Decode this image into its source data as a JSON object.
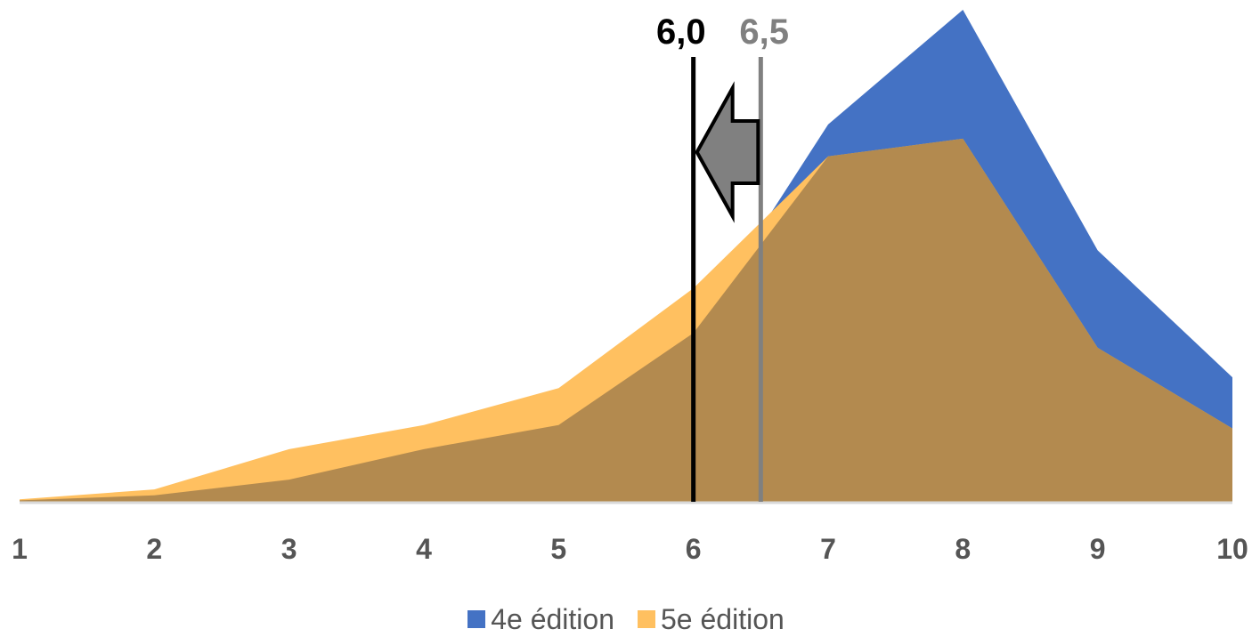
{
  "chart_data": {
    "type": "area",
    "x": [
      1,
      2,
      3,
      4,
      5,
      6,
      7,
      8,
      9,
      10
    ],
    "xlim": [
      1,
      10
    ],
    "ylim": [
      0,
      100
    ],
    "grid": false,
    "legend_position": "bottom",
    "series": [
      {
        "name": "4e édition",
        "color": "#4472c4",
        "values": [
          0.3,
          1.3,
          4.5,
          10.7,
          15.6,
          34.3,
          76.7,
          100,
          51.1,
          25.3
        ]
      },
      {
        "name": "5e édition",
        "color": "#ffc060",
        "values": [
          0.5,
          2.5,
          10.7,
          15.6,
          23.1,
          43.4,
          70.2,
          73.8,
          31.3,
          14.9
        ]
      }
    ],
    "overlap_color": "#b38a4f",
    "markers": [
      {
        "x": 6.0,
        "label": "6,0",
        "color": "#000000"
      },
      {
        "x": 6.5,
        "label": "6,5",
        "color": "#808080"
      }
    ],
    "arrow": {
      "from": 6.5,
      "to": 6.0,
      "color": "#808080"
    }
  }
}
